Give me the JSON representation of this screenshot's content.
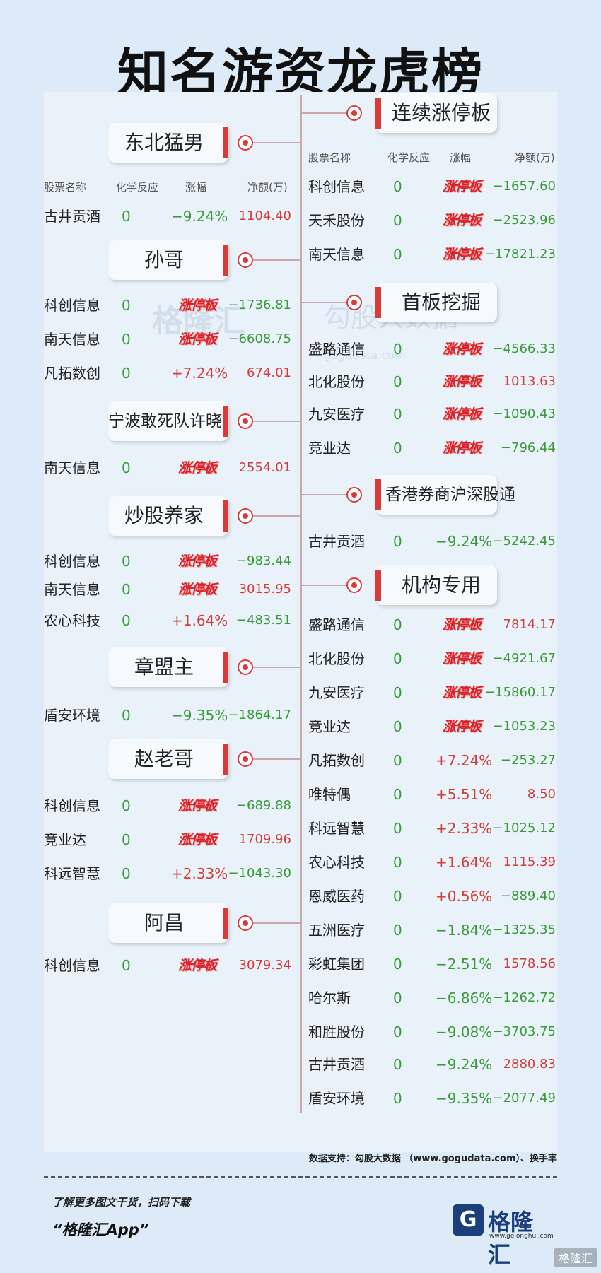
{
  "title": "知名游资龙虎榜",
  "headers": {
    "name": "股票名称",
    "chem": "化学反应",
    "pct": "涨幅",
    "amt": "净额(万)"
  },
  "watermark": {
    "brand": "格隆汇",
    "brand2": "勾股大数据",
    "url": "gogudata.com"
  },
  "left_groups": [
    {
      "name": "东北猛男",
      "rows": [
        {
          "name": "古井贡酒",
          "chem": "0",
          "pct": "−9.24%",
          "pct_type": "neg",
          "amt": "1104.40",
          "amt_type": "pos"
        }
      ]
    },
    {
      "name": "孙哥",
      "rows": [
        {
          "name": "科创信息",
          "chem": "0",
          "pct": "涨停板",
          "pct_type": "zt",
          "amt": "−1736.81",
          "amt_type": "neg"
        },
        {
          "name": "南天信息",
          "chem": "0",
          "pct": "涨停板",
          "pct_type": "zt",
          "amt": "−6608.75",
          "amt_type": "neg"
        },
        {
          "name": "凡拓数创",
          "chem": "0",
          "pct": "+7.24%",
          "pct_type": "pos",
          "amt": "674.01",
          "amt_type": "pos"
        }
      ]
    },
    {
      "name": "宁波敢死队许晓",
      "rows": [
        {
          "name": "南天信息",
          "chem": "0",
          "pct": "涨停板",
          "pct_type": "zt",
          "amt": "2554.01",
          "amt_type": "pos"
        }
      ]
    },
    {
      "name": "炒股养家",
      "rows": [
        {
          "name": "科创信息",
          "chem": "0",
          "pct": "涨停板",
          "pct_type": "zt",
          "amt": "−983.44",
          "amt_type": "neg"
        },
        {
          "name": "南天信息",
          "chem": "0",
          "pct": "涨停板",
          "pct_type": "zt",
          "amt": "3015.95",
          "amt_type": "pos"
        },
        {
          "name": "农心科技",
          "chem": "0",
          "pct": "+1.64%",
          "pct_type": "pos",
          "amt": "−483.51",
          "amt_type": "neg"
        }
      ]
    },
    {
      "name": "章盟主",
      "rows": [
        {
          "name": "盾安环境",
          "chem": "0",
          "pct": "−9.35%",
          "pct_type": "neg",
          "amt": "−1864.17",
          "amt_type": "neg"
        }
      ]
    },
    {
      "name": "赵老哥",
      "rows": [
        {
          "name": "科创信息",
          "chem": "0",
          "pct": "涨停板",
          "pct_type": "zt",
          "amt": "−689.88",
          "amt_type": "neg"
        },
        {
          "name": "竞业达",
          "chem": "0",
          "pct": "涨停板",
          "pct_type": "zt",
          "amt": "1709.96",
          "amt_type": "pos"
        },
        {
          "name": "科远智慧",
          "chem": "0",
          "pct": "+2.33%",
          "pct_type": "pos",
          "amt": "−1043.30",
          "amt_type": "neg"
        }
      ]
    },
    {
      "name": "阿昌",
      "rows": [
        {
          "name": "科创信息",
          "chem": "0",
          "pct": "涨停板",
          "pct_type": "zt",
          "amt": "3079.34",
          "amt_type": "pos"
        }
      ]
    }
  ],
  "right_groups": [
    {
      "name": "连续涨停板",
      "rows": [
        {
          "name": "科创信息",
          "chem": "0",
          "pct": "涨停板",
          "pct_type": "zt",
          "amt": "−1657.60",
          "amt_type": "neg"
        },
        {
          "name": "天禾股份",
          "chem": "0",
          "pct": "涨停板",
          "pct_type": "zt",
          "amt": "−2523.96",
          "amt_type": "neg"
        },
        {
          "name": "南天信息",
          "chem": "0",
          "pct": "涨停板",
          "pct_type": "zt",
          "amt": "−17821.23",
          "amt_type": "neg"
        }
      ]
    },
    {
      "name": "首板挖掘",
      "rows": [
        {
          "name": "盛路通信",
          "chem": "0",
          "pct": "涨停板",
          "pct_type": "zt",
          "amt": "−4566.33",
          "amt_type": "neg"
        },
        {
          "name": "北化股份",
          "chem": "0",
          "pct": "涨停板",
          "pct_type": "zt",
          "amt": "1013.63",
          "amt_type": "pos"
        },
        {
          "name": "九安医疗",
          "chem": "0",
          "pct": "涨停板",
          "pct_type": "zt",
          "amt": "−1090.43",
          "amt_type": "neg"
        },
        {
          "name": "竞业达",
          "chem": "0",
          "pct": "涨停板",
          "pct_type": "zt",
          "amt": "−796.44",
          "amt_type": "neg"
        }
      ]
    },
    {
      "name": "香港券商沪深股通",
      "rows": [
        {
          "name": "古井贡酒",
          "chem": "0",
          "pct": "−9.24%",
          "pct_type": "neg",
          "amt": "−5242.45",
          "amt_type": "neg"
        }
      ]
    },
    {
      "name": "机构专用",
      "rows": [
        {
          "name": "盛路通信",
          "chem": "0",
          "pct": "涨停板",
          "pct_type": "zt",
          "amt": "7814.17",
          "amt_type": "pos"
        },
        {
          "name": "北化股份",
          "chem": "0",
          "pct": "涨停板",
          "pct_type": "zt",
          "amt": "−4921.67",
          "amt_type": "neg"
        },
        {
          "name": "九安医疗",
          "chem": "0",
          "pct": "涨停板",
          "pct_type": "zt",
          "amt": "−15860.17",
          "amt_type": "neg"
        },
        {
          "name": "竞业达",
          "chem": "0",
          "pct": "涨停板",
          "pct_type": "zt",
          "amt": "−1053.23",
          "amt_type": "neg"
        },
        {
          "name": "凡拓数创",
          "chem": "0",
          "pct": "+7.24%",
          "pct_type": "pos",
          "amt": "−253.27",
          "amt_type": "neg"
        },
        {
          "name": "唯特偶",
          "chem": "0",
          "pct": "+5.51%",
          "pct_type": "pos",
          "amt": "8.50",
          "amt_type": "pos"
        },
        {
          "name": "科远智慧",
          "chem": "0",
          "pct": "+2.33%",
          "pct_type": "pos",
          "amt": "−1025.12",
          "amt_type": "neg"
        },
        {
          "name": "农心科技",
          "chem": "0",
          "pct": "+1.64%",
          "pct_type": "pos",
          "amt": "1115.39",
          "amt_type": "pos"
        },
        {
          "name": "恩威医药",
          "chem": "0",
          "pct": "+0.56%",
          "pct_type": "pos",
          "amt": "−889.40",
          "amt_type": "neg"
        },
        {
          "name": "五洲医疗",
          "chem": "0",
          "pct": "−1.84%",
          "pct_type": "neg",
          "amt": "−1325.35",
          "amt_type": "neg"
        },
        {
          "name": "彩虹集团",
          "chem": "0",
          "pct": "−2.51%",
          "pct_type": "neg",
          "amt": "1578.56",
          "amt_type": "pos"
        },
        {
          "name": "哈尔斯",
          "chem": "0",
          "pct": "−6.86%",
          "pct_type": "neg",
          "amt": "−1262.72",
          "amt_type": "neg"
        },
        {
          "name": "和胜股份",
          "chem": "0",
          "pct": "−9.08%",
          "pct_type": "neg",
          "amt": "−3703.75",
          "amt_type": "neg"
        },
        {
          "name": "古井贡酒",
          "chem": "0",
          "pct": "−9.24%",
          "pct_type": "neg",
          "amt": "2880.83",
          "amt_type": "pos"
        },
        {
          "name": "盾安环境",
          "chem": "0",
          "pct": "−9.35%",
          "pct_type": "neg",
          "amt": "−2077.49",
          "amt_type": "neg"
        }
      ]
    }
  ],
  "source": "数据支持：勾股大数据 （www.gogudata.com）、换手率",
  "footer": {
    "line1": "了解更多图文干货，扫码下载",
    "line2": "“格隆汇App”"
  },
  "logo": {
    "mark": "G",
    "text": "格隆汇",
    "url": "www.gelonghui.com"
  },
  "corner_mark": "格隆汇"
}
